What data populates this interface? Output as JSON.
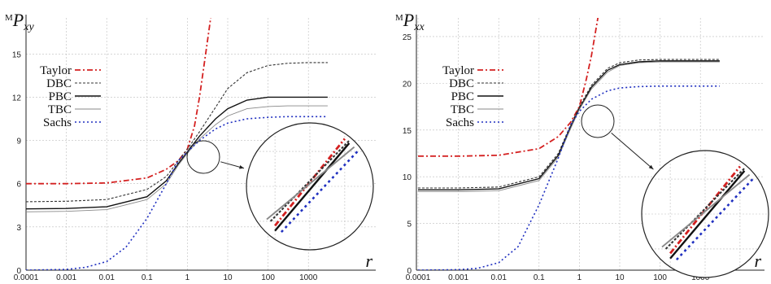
{
  "chart_data": [
    {
      "type": "line",
      "ylabel": {
        "prefix": "M",
        "main": "P",
        "sub": "xy"
      },
      "xlabel": "r",
      "x_scale": "log",
      "xlim": [
        0.0001,
        3000
      ],
      "ylim": [
        0,
        17.5
      ],
      "x_ticks": [
        "0.0001",
        "0.001",
        "0.01",
        "0.1",
        "1",
        "10",
        "100",
        "1000"
      ],
      "y_ticks": [
        "0",
        "3",
        "6",
        "9",
        "12",
        "15"
      ],
      "y_tick_values": [
        0,
        3,
        6,
        9,
        12,
        15
      ],
      "grid": true,
      "legend_position": "top-left",
      "inset": "magnified view around r = 1",
      "series": [
        {
          "name": "Taylor",
          "style": "dash-dot",
          "color": "#d42020",
          "points": [
            [
              0.0001,
              6.0
            ],
            [
              0.001,
              6.0
            ],
            [
              0.01,
              6.05
            ],
            [
              0.1,
              6.4
            ],
            [
              0.3,
              7.0
            ],
            [
              0.6,
              7.6
            ],
            [
              1,
              8.4
            ],
            [
              1.5,
              10.0
            ],
            [
              2,
              12.0
            ],
            [
              3,
              15.5
            ],
            [
              4,
              18.0
            ]
          ]
        },
        {
          "name": "DBC",
          "style": "dashed",
          "color": "#333333",
          "points": [
            [
              0.0001,
              4.75
            ],
            [
              0.001,
              4.78
            ],
            [
              0.01,
              4.9
            ],
            [
              0.1,
              5.6
            ],
            [
              0.3,
              6.5
            ],
            [
              0.6,
              7.6
            ],
            [
              1,
              8.4
            ],
            [
              2,
              9.6
            ],
            [
              5,
              11.3
            ],
            [
              10,
              12.6
            ],
            [
              30,
              13.7
            ],
            [
              100,
              14.2
            ],
            [
              300,
              14.35
            ],
            [
              1000,
              14.4
            ],
            [
              3000,
              14.4
            ]
          ]
        },
        {
          "name": "PBC",
          "style": "solid",
          "color": "#111111",
          "points": [
            [
              0.0001,
              4.25
            ],
            [
              0.001,
              4.28
            ],
            [
              0.01,
              4.4
            ],
            [
              0.1,
              5.1
            ],
            [
              0.3,
              6.2
            ],
            [
              0.6,
              7.4
            ],
            [
              1,
              8.2
            ],
            [
              2,
              9.3
            ],
            [
              5,
              10.5
            ],
            [
              10,
              11.2
            ],
            [
              30,
              11.8
            ],
            [
              100,
              12.0
            ],
            [
              300,
              12.0
            ],
            [
              1000,
              12.0
            ],
            [
              3000,
              12.0
            ]
          ]
        },
        {
          "name": "TBC",
          "style": "solid-thin",
          "color": "#888888",
          "points": [
            [
              0.0001,
              4.05
            ],
            [
              0.001,
              4.08
            ],
            [
              0.01,
              4.2
            ],
            [
              0.1,
              4.9
            ],
            [
              0.3,
              6.0
            ],
            [
              0.6,
              7.3
            ],
            [
              1,
              8.1
            ],
            [
              2,
              9.1
            ],
            [
              5,
              10.1
            ],
            [
              10,
              10.7
            ],
            [
              30,
              11.2
            ],
            [
              100,
              11.35
            ],
            [
              300,
              11.4
            ],
            [
              1000,
              11.4
            ],
            [
              3000,
              11.4
            ]
          ]
        },
        {
          "name": "Sachs",
          "style": "dotted",
          "color": "#2030c0",
          "points": [
            [
              0.0001,
              0.0
            ],
            [
              0.001,
              0.05
            ],
            [
              0.003,
              0.2
            ],
            [
              0.01,
              0.6
            ],
            [
              0.03,
              1.6
            ],
            [
              0.1,
              3.6
            ],
            [
              0.3,
              6.0
            ],
            [
              0.6,
              7.6
            ],
            [
              1,
              8.2
            ],
            [
              2,
              9.0
            ],
            [
              5,
              9.8
            ],
            [
              10,
              10.2
            ],
            [
              30,
              10.5
            ],
            [
              100,
              10.6
            ],
            [
              300,
              10.65
            ],
            [
              1000,
              10.65
            ],
            [
              3000,
              10.65
            ]
          ]
        }
      ]
    },
    {
      "type": "line",
      "ylabel": {
        "prefix": "M",
        "main": "P",
        "sub": "xx"
      },
      "xlabel": "r",
      "x_scale": "log",
      "xlim": [
        0.0001,
        3000
      ],
      "ylim": [
        0,
        27
      ],
      "x_ticks": [
        "0.0001",
        "0.001",
        "0.01",
        "0.1",
        "1",
        "10",
        "100",
        "1000"
      ],
      "y_ticks": [
        "0",
        "5",
        "10",
        "15",
        "20",
        "25"
      ],
      "y_tick_values": [
        0,
        5,
        10,
        15,
        20,
        25
      ],
      "grid": true,
      "legend_position": "top-left",
      "inset": "magnified view around r = 1",
      "series": [
        {
          "name": "Taylor",
          "style": "dash-dot",
          "color": "#d42020",
          "points": [
            [
              0.0001,
              12.2
            ],
            [
              0.001,
              12.2
            ],
            [
              0.01,
              12.3
            ],
            [
              0.1,
              13.0
            ],
            [
              0.3,
              14.3
            ],
            [
              0.6,
              15.8
            ],
            [
              1,
              17.5
            ],
            [
              1.5,
              20.5
            ],
            [
              2,
              23.0
            ],
            [
              3,
              27.5
            ]
          ]
        },
        {
          "name": "DBC",
          "style": "dashed",
          "color": "#333333",
          "points": [
            [
              0.0001,
              8.8
            ],
            [
              0.001,
              8.8
            ],
            [
              0.01,
              8.9
            ],
            [
              0.1,
              10.0
            ],
            [
              0.3,
              12.5
            ],
            [
              0.6,
              15.5
            ],
            [
              1,
              17.5
            ],
            [
              2,
              19.8
            ],
            [
              5,
              21.6
            ],
            [
              10,
              22.2
            ],
            [
              30,
              22.5
            ],
            [
              100,
              22.55
            ],
            [
              1000,
              22.55
            ],
            [
              3000,
              22.55
            ]
          ]
        },
        {
          "name": "PBC",
          "style": "solid",
          "color": "#111111",
          "points": [
            [
              0.0001,
              8.6
            ],
            [
              0.001,
              8.6
            ],
            [
              0.01,
              8.7
            ],
            [
              0.1,
              9.8
            ],
            [
              0.3,
              12.3
            ],
            [
              0.6,
              15.3
            ],
            [
              1,
              17.3
            ],
            [
              2,
              19.6
            ],
            [
              5,
              21.4
            ],
            [
              10,
              22.0
            ],
            [
              30,
              22.3
            ],
            [
              100,
              22.4
            ],
            [
              1000,
              22.4
            ],
            [
              3000,
              22.4
            ]
          ]
        },
        {
          "name": "TBC",
          "style": "solid-thin",
          "color": "#888888",
          "points": [
            [
              0.0001,
              8.4
            ],
            [
              0.001,
              8.4
            ],
            [
              0.01,
              8.5
            ],
            [
              0.1,
              9.6
            ],
            [
              0.3,
              12.1
            ],
            [
              0.6,
              15.1
            ],
            [
              1,
              17.2
            ],
            [
              2,
              19.4
            ],
            [
              5,
              21.2
            ],
            [
              10,
              21.9
            ],
            [
              30,
              22.2
            ],
            [
              100,
              22.3
            ],
            [
              1000,
              22.3
            ],
            [
              3000,
              22.3
            ]
          ]
        },
        {
          "name": "Sachs",
          "style": "dotted",
          "color": "#2030c0",
          "points": [
            [
              0.0001,
              0.0
            ],
            [
              0.001,
              0.05
            ],
            [
              0.003,
              0.2
            ],
            [
              0.01,
              0.8
            ],
            [
              0.03,
              2.5
            ],
            [
              0.1,
              7.0
            ],
            [
              0.3,
              12.0
            ],
            [
              0.6,
              15.5
            ],
            [
              1,
              17.0
            ],
            [
              2,
              18.3
            ],
            [
              5,
              19.2
            ],
            [
              10,
              19.5
            ],
            [
              30,
              19.65
            ],
            [
              100,
              19.7
            ],
            [
              1000,
              19.7
            ],
            [
              3000,
              19.7
            ]
          ]
        }
      ]
    }
  ]
}
